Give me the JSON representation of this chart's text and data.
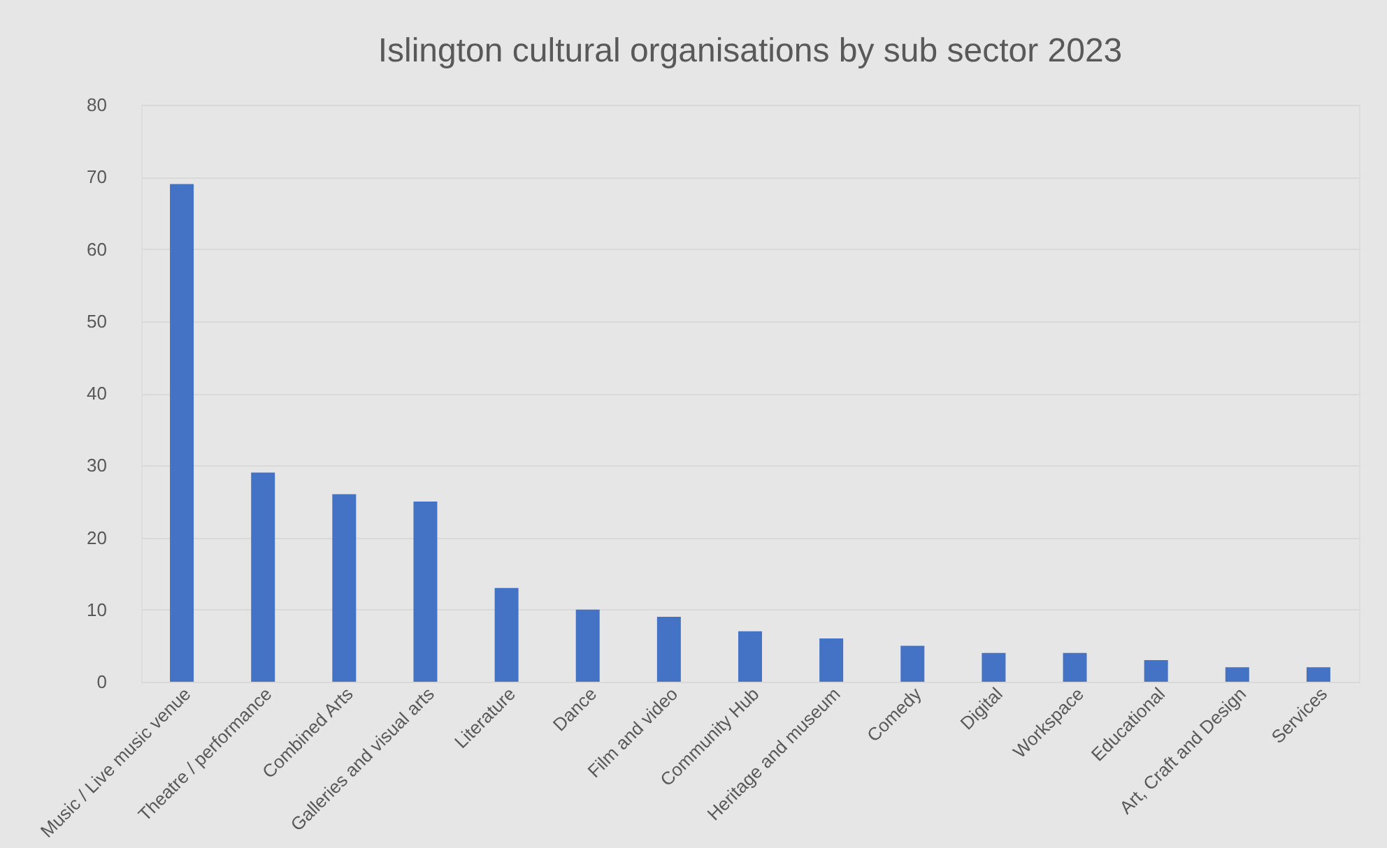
{
  "chart_data": {
    "type": "bar",
    "title": "Islington cultural organisations by sub sector 2023",
    "categories": [
      "Music / Live music venue",
      "Theatre / performance",
      "Combined Arts",
      "Galleries and visual arts",
      "Literature",
      "Dance",
      "Film and video",
      "Community Hub",
      "Heritage and museum",
      "Comedy",
      "Digital",
      "Workspace",
      "Educational",
      "Art, Craft and Design",
      "Services"
    ],
    "values": [
      69,
      29,
      26,
      25,
      13,
      10,
      9,
      7,
      6,
      5,
      4,
      4,
      3,
      2,
      2
    ],
    "color": "#4472c4",
    "ylim": [
      0,
      80
    ],
    "yticks": [
      0,
      10,
      20,
      30,
      40,
      50,
      60,
      70,
      80
    ],
    "grid": "y"
  }
}
